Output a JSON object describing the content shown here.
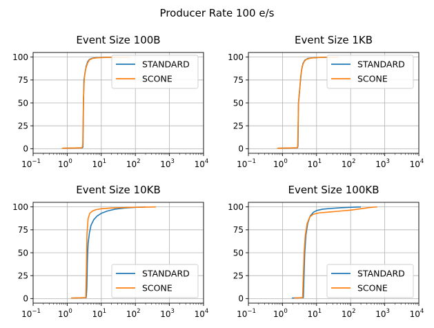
{
  "figure": {
    "suptitle": "Producer Rate 100 e/s"
  },
  "chart_data": [
    {
      "type": "line",
      "title": "Event Size 100B",
      "xscale": "log",
      "xlim": [
        0.1,
        10000
      ],
      "ylim": [
        -5,
        105
      ],
      "x_ticks": [
        "10",
        "10",
        "10",
        "10",
        "10",
        "10"
      ],
      "x_tick_exponents": [
        "−1",
        "0",
        "1",
        "2",
        "3",
        "4"
      ],
      "y_ticks": [
        "0",
        "25",
        "50",
        "75",
        "100"
      ],
      "grid": true,
      "legend": "top-right",
      "series": [
        {
          "name": "STANDARD",
          "color": "#1f77b4",
          "points": [
            [
              0.75,
              0.5
            ],
            [
              2.8,
              1
            ],
            [
              2.9,
              2
            ],
            [
              3.0,
              50
            ],
            [
              3.1,
              75
            ],
            [
              3.3,
              82
            ],
            [
              3.6,
              90
            ],
            [
              4.0,
              95
            ],
            [
              4.5,
              97.5
            ],
            [
              5.5,
              98.8
            ],
            [
              7,
              99.3
            ],
            [
              10,
              99.7
            ],
            [
              20,
              99.9
            ],
            [
              30,
              100
            ]
          ]
        },
        {
          "name": "SCONE",
          "color": "#ff7f0e",
          "points": [
            [
              0.7,
              0.5
            ],
            [
              2.7,
              1
            ],
            [
              2.85,
              3
            ],
            [
              3.0,
              55
            ],
            [
              3.2,
              78
            ],
            [
              3.5,
              87
            ],
            [
              3.9,
              93
            ],
            [
              4.5,
              97
            ],
            [
              5.5,
              98.5
            ],
            [
              8,
              99.3
            ],
            [
              15,
              99.7
            ],
            [
              30,
              99.9
            ],
            [
              70,
              100
            ]
          ]
        }
      ]
    },
    {
      "type": "line",
      "title": "Event Size 1KB",
      "xscale": "log",
      "xlim": [
        0.1,
        10000
      ],
      "ylim": [
        -5,
        105
      ],
      "x_ticks": [
        "10",
        "10",
        "10",
        "10",
        "10",
        "10"
      ],
      "x_tick_exponents": [
        "−1",
        "0",
        "1",
        "2",
        "3",
        "4"
      ],
      "y_ticks": [
        "0",
        "25",
        "50",
        "75",
        "100"
      ],
      "grid": true,
      "legend": "top-right",
      "series": [
        {
          "name": "STANDARD",
          "color": "#1f77b4",
          "points": [
            [
              0.75,
              0.5
            ],
            [
              2.75,
              1
            ],
            [
              2.85,
              3
            ],
            [
              2.95,
              50
            ],
            [
              3.1,
              58
            ],
            [
              3.3,
              70
            ],
            [
              3.6,
              85
            ],
            [
              4.0,
              93
            ],
            [
              4.5,
              96.5
            ],
            [
              5.5,
              98.5
            ],
            [
              8,
              99.3
            ],
            [
              15,
              99.7
            ],
            [
              25,
              100
            ]
          ]
        },
        {
          "name": "SCONE",
          "color": "#ff7f0e",
          "points": [
            [
              0.7,
              0.5
            ],
            [
              2.7,
              1
            ],
            [
              2.8,
              3
            ],
            [
              2.95,
              50
            ],
            [
              3.05,
              57
            ],
            [
              3.2,
              65
            ],
            [
              3.45,
              80
            ],
            [
              3.8,
              90
            ],
            [
              4.3,
              95
            ],
            [
              5,
              97.5
            ],
            [
              7,
              99
            ],
            [
              12,
              99.6
            ],
            [
              25,
              99.9
            ],
            [
              45,
              100
            ]
          ]
        }
      ]
    },
    {
      "type": "line",
      "title": "Event Size 10KB",
      "xscale": "log",
      "xlim": [
        0.1,
        10000
      ],
      "ylim": [
        -5,
        105
      ],
      "x_ticks": [
        "10",
        "10",
        "10",
        "10",
        "10",
        "10"
      ],
      "x_tick_exponents": [
        "−1",
        "0",
        "1",
        "2",
        "3",
        "4"
      ],
      "y_ticks": [
        "0",
        "25",
        "50",
        "75",
        "100"
      ],
      "grid": true,
      "legend": "bottom-right",
      "series": [
        {
          "name": "STANDARD",
          "color": "#1f77b4",
          "points": [
            [
              1.3,
              0.5
            ],
            [
              3.6,
              1
            ],
            [
              3.75,
              10
            ],
            [
              3.9,
              40
            ],
            [
              4.1,
              60
            ],
            [
              4.5,
              72
            ],
            [
              5,
              80
            ],
            [
              6,
              86
            ],
            [
              7.5,
              90
            ],
            [
              10,
              93
            ],
            [
              15,
              95.5
            ],
            [
              25,
              97.5
            ],
            [
              50,
              98.8
            ],
            [
              100,
              99.5
            ],
            [
              200,
              100
            ]
          ]
        },
        {
          "name": "SCONE",
          "color": "#ff7f0e",
          "points": [
            [
              1.3,
              0.5
            ],
            [
              3.5,
              1
            ],
            [
              3.65,
              30
            ],
            [
              3.8,
              70
            ],
            [
              4.1,
              87
            ],
            [
              4.6,
              93
            ],
            [
              5.5,
              95.5
            ],
            [
              7,
              97
            ],
            [
              10,
              98
            ],
            [
              20,
              98.8
            ],
            [
              50,
              99.3
            ],
            [
              100,
              99.6
            ],
            [
              200,
              99.8
            ],
            [
              400,
              100
            ]
          ]
        }
      ]
    },
    {
      "type": "line",
      "title": "Event Size 100KB",
      "xscale": "log",
      "xlim": [
        0.1,
        10000
      ],
      "ylim": [
        -5,
        105
      ],
      "x_ticks": [
        "10",
        "10",
        "10",
        "10",
        "10",
        "10"
      ],
      "x_tick_exponents": [
        "−1",
        "0",
        "1",
        "2",
        "3",
        "4"
      ],
      "y_ticks": [
        "0",
        "25",
        "50",
        "75",
        "100"
      ],
      "grid": true,
      "legend": "bottom-right",
      "series": [
        {
          "name": "STANDARD",
          "color": "#1f77b4",
          "points": [
            [
              1.9,
              0.5
            ],
            [
              4.1,
              1
            ],
            [
              4.25,
              20
            ],
            [
              4.5,
              50
            ],
            [
              4.9,
              70
            ],
            [
              5.5,
              82
            ],
            [
              6.5,
              90
            ],
            [
              8,
              94
            ],
            [
              10,
              96
            ],
            [
              15,
              97.5
            ],
            [
              30,
              98.5
            ],
            [
              60,
              99.2
            ],
            [
              120,
              99.7
            ],
            [
              200,
              100
            ]
          ]
        },
        {
          "name": "SCONE",
          "color": "#ff7f0e",
          "points": [
            [
              2.2,
              0.5
            ],
            [
              3.9,
              1
            ],
            [
              4.05,
              20
            ],
            [
              4.3,
              50
            ],
            [
              4.7,
              70
            ],
            [
              5.3,
              82
            ],
            [
              6.3,
              89
            ],
            [
              8,
              92
            ],
            [
              12,
              93.5
            ],
            [
              25,
              94.5
            ],
            [
              50,
              95.5
            ],
            [
              100,
              96.5
            ],
            [
              200,
              98
            ],
            [
              350,
              99.3
            ],
            [
              600,
              100
            ]
          ]
        }
      ]
    }
  ]
}
